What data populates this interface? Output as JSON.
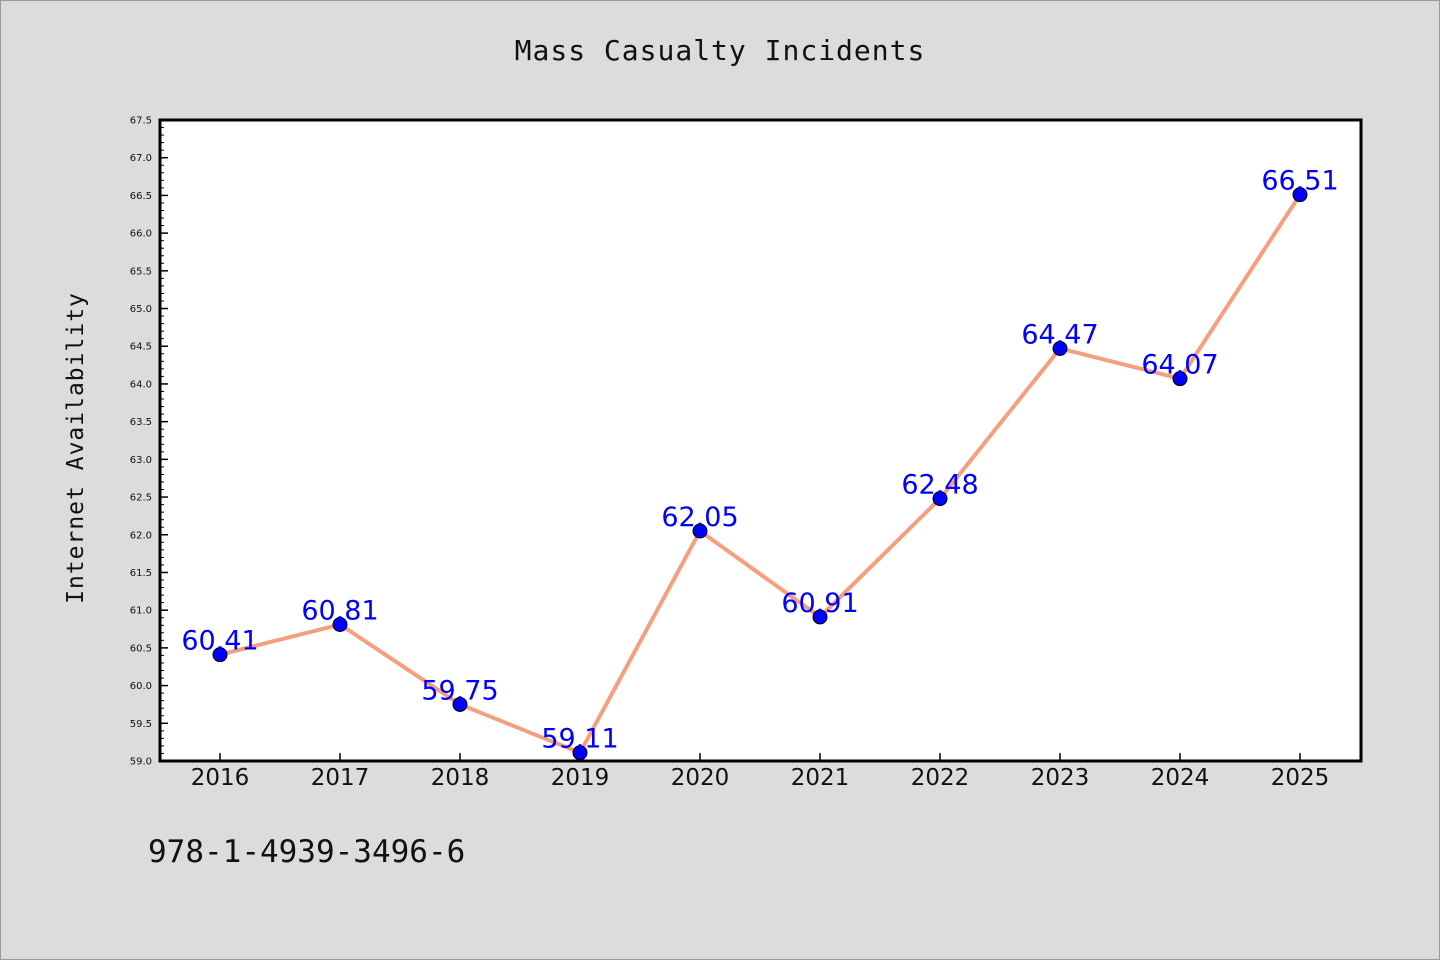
{
  "chart_data": {
    "type": "line",
    "title": "Mass Casualty Incidents",
    "xlabel": "",
    "ylabel": "Internet Availability",
    "categories": [
      "2016",
      "2017",
      "2018",
      "2019",
      "2020",
      "2021",
      "2022",
      "2023",
      "2024",
      "2025"
    ],
    "series": [
      {
        "values": [
          60.41,
          60.81,
          59.75,
          59.11,
          62.05,
          60.91,
          62.48,
          64.47,
          64.07,
          66.51
        ],
        "labels": [
          "60.41",
          "60.81",
          "59.75",
          "59.11",
          "62.05",
          "60.91",
          "62.48",
          "64.47",
          "64.07",
          "66.51"
        ],
        "line_color": "#f4a07e",
        "marker_color": "#0000ff",
        "label_color": "#0000ff"
      }
    ],
    "ylim": [
      59.0,
      67.5
    ],
    "yticks": [
      "59.0",
      "59.5",
      "60.0",
      "60.5",
      "61.0",
      "61.5",
      "62.0",
      "62.5",
      "63.0",
      "63.5",
      "64.0",
      "64.5",
      "65.0",
      "65.5",
      "66.0",
      "66.5",
      "67.0",
      "67.5"
    ],
    "grid": false,
    "legend": "none"
  },
  "footer": {
    "isbn": "978-1-4939-3496-6"
  },
  "colors": {
    "background": "#dcdcdc",
    "plot_background": "#ffffff"
  }
}
